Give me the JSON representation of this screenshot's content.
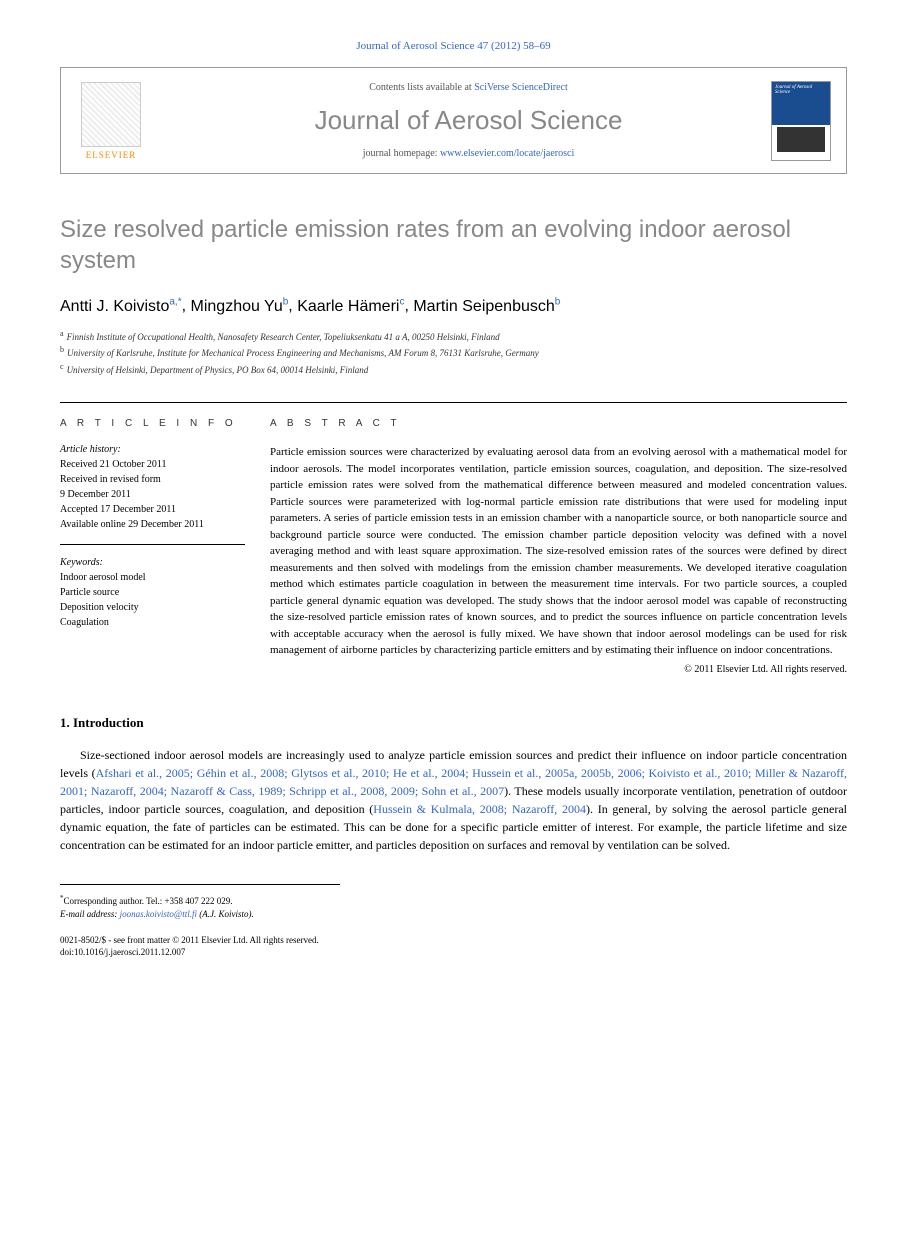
{
  "journal_ref": "Journal of Aerosol Science 47 (2012) 58–69",
  "header": {
    "contents_prefix": "Contents lists available at ",
    "contents_link": "SciVerse ScienceDirect",
    "journal_title": "Journal of Aerosol Science",
    "homepage_prefix": "journal homepage: ",
    "homepage_url": "www.elsevier.com/locate/jaerosci",
    "elsevier": "ELSEVIER",
    "cover_title": "Journal of Aerosol Science"
  },
  "title": "Size resolved particle emission rates from an evolving indoor aerosol system",
  "authors": [
    {
      "name": "Antti J. Koivisto",
      "aff": "a,",
      "corr": "*"
    },
    {
      "name": "Mingzhou Yu",
      "aff": "b",
      "corr": ""
    },
    {
      "name": "Kaarle Hämeri",
      "aff": "c",
      "corr": ""
    },
    {
      "name": "Martin Seipenbusch",
      "aff": "b",
      "corr": ""
    }
  ],
  "affiliations": [
    {
      "sup": "a",
      "text": "Finnish Institute of Occupational Health, Nanosafety Research Center, Topeliuksenkatu 41 a A, 00250 Helsinki, Finland"
    },
    {
      "sup": "b",
      "text": "University of Karlsruhe, Institute for Mechanical Process Engineering and Mechanisms, AM Forum 8, 76131 Karlsruhe, Germany"
    },
    {
      "sup": "c",
      "text": "University of Helsinki, Department of Physics, PO Box 64, 00014 Helsinki, Finland"
    }
  ],
  "info": {
    "heading": "A R T I C L E  I N F O",
    "history_label": "Article history:",
    "history": [
      "Received 21 October 2011",
      "Received in revised form",
      "9 December 2011",
      "Accepted 17 December 2011",
      "Available online 29 December 2011"
    ],
    "keywords_label": "Keywords:",
    "keywords": [
      "Indoor aerosol model",
      "Particle source",
      "Deposition velocity",
      "Coagulation"
    ]
  },
  "abstract": {
    "heading": "A B S T R A C T",
    "text": "Particle emission sources were characterized by evaluating aerosol data from an evolving aerosol with a mathematical model for indoor aerosols. The model incorporates ventilation, particle emission sources, coagulation, and deposition. The size-resolved particle emission rates were solved from the mathematical difference between measured and modeled concentration values. Particle sources were parameterized with log-normal particle emission rate distributions that were used for modeling input parameters. A series of particle emission tests in an emission chamber with a nanoparticle source, or both nanoparticle source and background particle source were conducted. The emission chamber particle deposition velocity was defined with a novel averaging method and with least square approximation. The size-resolved emission rates of the sources were defined by direct measurements and then solved with modelings from the emission chamber measurements. We developed iterative coagulation method which estimates particle coagulation in between the measurement time intervals. For two particle sources, a coupled particle general dynamic equation was developed. The study shows that the indoor aerosol model was capable of reconstructing the size-resolved particle emission rates of known sources, and to predict the sources influence on particle concentration levels with acceptable accuracy when the aerosol is fully mixed. We have shown that indoor aerosol modelings can be used for risk management of airborne particles by characterizing particle emitters and by estimating their influence on indoor concentrations.",
    "copyright": "© 2011 Elsevier Ltd. All rights reserved."
  },
  "section1": {
    "heading": "1.  Introduction",
    "p1_pre": "Size-sectioned indoor aerosol models are increasingly used to analyze particle emission sources and predict their influence on indoor particle concentration levels (",
    "refs1": "Afshari et al., 2005; Géhin et al., 2008; Glytsos et al., 2010; He et al., 2004; Hussein et al., 2005a, 2005b, 2006; Koivisto et al., 2010; Miller & Nazaroff, 2001; Nazaroff, 2004; Nazaroff & Cass, 1989; Schripp et al., 2008, 2009; Sohn et al., 2007",
    "p1_mid": "). These models usually incorporate ventilation, penetration of outdoor particles, indoor particle sources, coagulation, and deposition (",
    "refs2": "Hussein & Kulmala, 2008; Nazaroff, 2004",
    "p1_post": "). In general, by solving the aerosol particle general dynamic equation, the fate of particles can be estimated. This can be done for a specific particle emitter of interest. For example, the particle lifetime and size concentration can be estimated for an indoor particle emitter, and particles deposition on surfaces and removal by ventilation can be solved."
  },
  "footer": {
    "corr_label": "Corresponding author. Tel.: +358 407 222 029.",
    "email_label": "E-mail address: ",
    "email": "joonas.koivisto@ttl.fi",
    "email_post": " (A.J. Koivisto).",
    "issn": "0021-8502/$ - see front matter © 2011 Elsevier Ltd. All rights reserved.",
    "doi": "doi:10.1016/j.jaerosci.2011.12.007"
  }
}
